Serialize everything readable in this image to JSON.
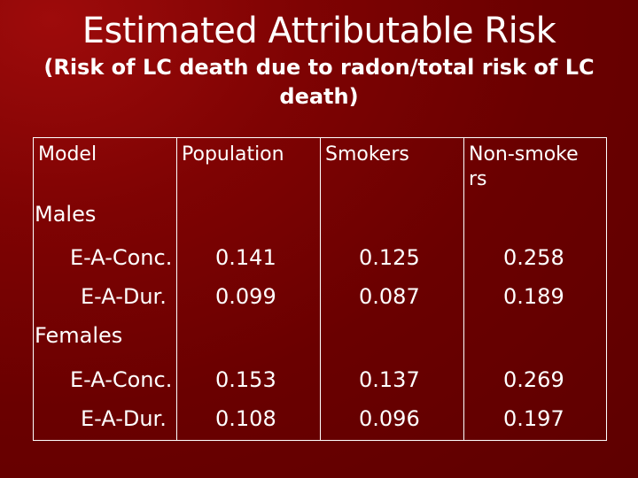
{
  "title": "Estimated Attributable Risk",
  "subtitle": "(Risk of LC death due to radon/total risk of LC death)",
  "table": {
    "headers": [
      "Model",
      "Population",
      "Smokers",
      "Non-smokers"
    ],
    "groups": [
      {
        "label": "Males",
        "rows": [
          {
            "model": "E-A-Conc.",
            "population": "0.141",
            "smokers": "0.125",
            "nonsmokers": "0.258"
          },
          {
            "model": "E-A-Dur.",
            "population": "0.099",
            "smokers": "0.087",
            "nonsmokers": "0.189"
          }
        ]
      },
      {
        "label": "Females",
        "rows": [
          {
            "model": "E-A-Conc.",
            "population": "0.153",
            "smokers": "0.137",
            "nonsmokers": "0.269"
          },
          {
            "model": "E-A-Dur.",
            "population": "0.108",
            "smokers": "0.096",
            "nonsmokers": "0.197"
          }
        ]
      }
    ]
  }
}
